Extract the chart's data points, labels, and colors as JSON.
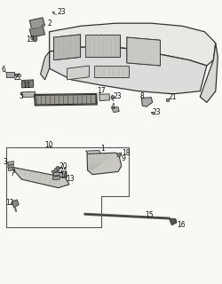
{
  "bg": "#f8f8f5",
  "lc": "#333333",
  "llc": "#888888",
  "glc": "#aaaaaa",
  "fig_width": 2.51,
  "fig_height": 3.2,
  "dpi": 100,
  "label_fs": 5.5,
  "label_color": "#111111"
}
